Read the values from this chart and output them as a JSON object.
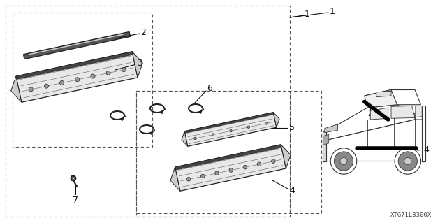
{
  "bg_color": "#ffffff",
  "line_color": "#222222",
  "dash_color": "#555555",
  "label_color": "#111111",
  "watermark": "XTG71L3300X",
  "figsize": [
    6.4,
    3.19
  ],
  "dpi": 100
}
